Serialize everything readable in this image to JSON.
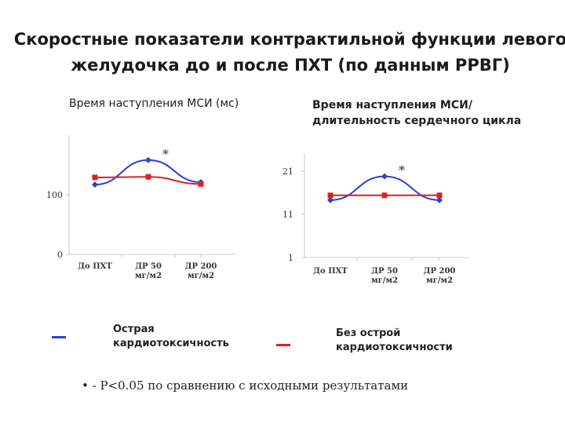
{
  "title": {
    "line1": "Скоростные показатели контрактильной функции левого",
    "line2": "желудочка до и после ПХТ (по данным РРВГ)"
  },
  "chart_data": [
    {
      "type": "line",
      "title": "Время наступления МСИ (мс)",
      "categories": [
        "До ПХТ",
        "ДР 50 мг/м2",
        "ДР 200 мг/м2"
      ],
      "y_ticks": [
        "0",
        "100"
      ],
      "ylim": [
        0,
        200
      ],
      "series": [
        {
          "color": "#2a3fd6",
          "marker": "diamond",
          "values": [
            117,
            158,
            121
          ]
        },
        {
          "color": "#e02020",
          "marker": "square",
          "values": [
            129,
            130,
            118
          ]
        }
      ],
      "annotations": [
        {
          "text": "*",
          "category_index": 1
        }
      ],
      "grid": false
    },
    {
      "type": "line",
      "title_line1": "Время наступления МСИ/",
      "title_line2": "длительность сердечного цикла",
      "categories": [
        "До ПХТ",
        "ДР 50 мг/м2",
        "ДР 200 мг/м2"
      ],
      "y_ticks": [
        "1",
        "11",
        "21"
      ],
      "ylim": [
        1,
        25
      ],
      "series": [
        {
          "color": "#2a3fd6",
          "marker": "diamond",
          "values": [
            14.3,
            19.8,
            14.3
          ]
        },
        {
          "color": "#e02020",
          "marker": "square",
          "values": [
            15.4,
            15.4,
            15.4
          ]
        }
      ],
      "annotations": [
        {
          "text": "*",
          "category_index": 1
        }
      ],
      "grid": false
    }
  ],
  "legend": {
    "blue_label_line1": "Острая",
    "blue_label_line2": "кардиотоксичность",
    "red_label_line1": "Без острой",
    "red_label_line2": "кардиотоксичности",
    "blue_color": "#2a3fd6",
    "red_color": "#e02020"
  },
  "footnote": "• - Р<0.05 по сравнению с исходными результатами"
}
